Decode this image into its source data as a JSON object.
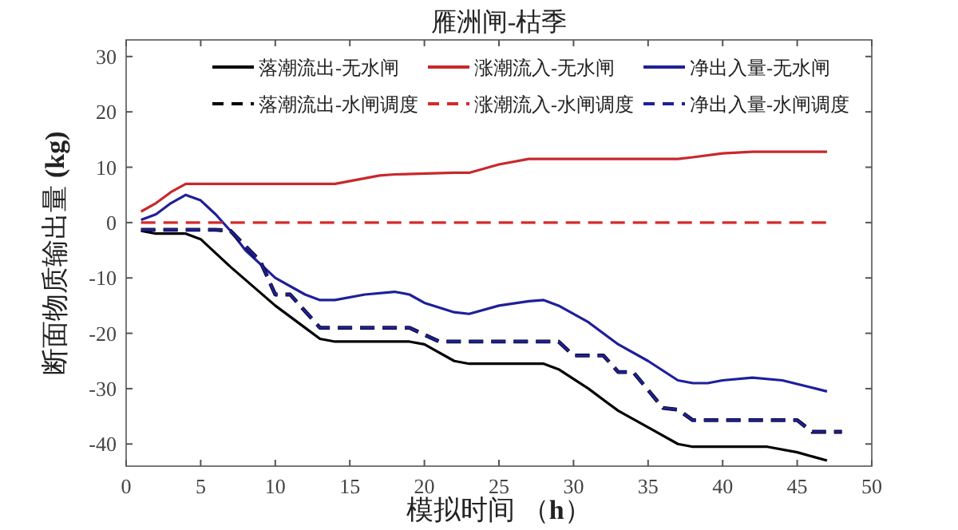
{
  "chart_data": {
    "type": "line",
    "title": "雁洲闸-枯季",
    "xlabel": "模拟时间 （**h**）",
    "ylabel": "断面物质输出量 **(kg)**",
    "xlim": [
      0,
      50
    ],
    "ylim": [
      -44,
      33
    ],
    "xticks": [
      0,
      5,
      10,
      15,
      20,
      25,
      30,
      35,
      40,
      45,
      50
    ],
    "yticks": [
      -40,
      -30,
      -20,
      -10,
      0,
      10,
      20,
      30
    ],
    "grid": false,
    "legend": "top right",
    "marker": "none",
    "series": [
      {
        "name": "落潮流出-无水闸",
        "color": "#000000",
        "line_style": "solid",
        "x": [
          1,
          2,
          4,
          5,
          7,
          10,
          12,
          13,
          14,
          19,
          20,
          22,
          23,
          28,
          29,
          31,
          33,
          35,
          37,
          38,
          43,
          45,
          47
        ],
        "values": [
          -1.5,
          -2,
          -2,
          -3,
          -8,
          -15,
          -19,
          -21,
          -21.5,
          -21.5,
          -22,
          -25,
          -25.5,
          -25.5,
          -26.5,
          -30,
          -34,
          -37,
          -40,
          -40.5,
          -40.5,
          -41.5,
          -43
        ]
      },
      {
        "name": "涨潮流入-无水闸",
        "color": "#c8282d",
        "line_style": "solid",
        "x": [
          1,
          2,
          3,
          4,
          5,
          14,
          15,
          17,
          18,
          22,
          23,
          25,
          27,
          37,
          38,
          40,
          42,
          47
        ],
        "values": [
          2,
          3.5,
          5.5,
          7,
          7,
          7,
          7.5,
          8.5,
          8.7,
          9,
          9,
          10.5,
          11.5,
          11.5,
          11.8,
          12.5,
          12.8,
          12.8
        ]
      },
      {
        "name": "净出入量-无水闸",
        "color": "#1f1f9a",
        "line_style": "solid",
        "x": [
          1,
          2,
          3,
          4,
          5,
          6,
          7,
          8,
          10,
          12,
          13,
          14,
          16,
          18,
          19,
          20,
          22,
          23,
          25,
          27,
          28,
          29,
          31,
          33,
          35,
          37,
          38,
          39,
          40,
          42,
          44,
          47
        ],
        "values": [
          0.5,
          1.5,
          3.5,
          5,
          4,
          1.5,
          -1.5,
          -5,
          -10,
          -13,
          -14,
          -14,
          -13,
          -12.5,
          -13,
          -14.5,
          -16.2,
          -16.5,
          -15,
          -14.2,
          -14,
          -15,
          -18,
          -22,
          -25,
          -28.5,
          -29,
          -29,
          -28.5,
          -28,
          -28.5,
          -30.5
        ]
      },
      {
        "name": "落潮流出-水闸调度",
        "color": "#000000",
        "line_style": "dashed",
        "x": [
          1,
          6,
          7,
          9,
          10,
          11,
          13,
          19,
          21,
          29,
          30,
          32,
          33,
          34,
          36,
          37,
          38,
          45,
          46,
          48
        ],
        "values": [
          -1.3,
          -1.3,
          -1.5,
          -7,
          -13,
          -13,
          -19,
          -19,
          -21.5,
          -21.5,
          -24,
          -24,
          -27,
          -27,
          -33.5,
          -33.8,
          -35.7,
          -35.7,
          -37.8,
          -37.8
        ]
      },
      {
        "name": "涨潮流入-水闸调度",
        "color": "#d42a2a",
        "line_style": "dashed",
        "x": [
          1,
          47
        ],
        "values": [
          0,
          0
        ]
      },
      {
        "name": "净出入量-水闸调度",
        "color": "#1f1f9a",
        "line_style": "dashed",
        "x": [
          1,
          6,
          7,
          9,
          10,
          11,
          13,
          19,
          21,
          29,
          30,
          32,
          33,
          34,
          36,
          37,
          38,
          45,
          46,
          48
        ],
        "values": [
          -1.3,
          -1.3,
          -1.5,
          -7,
          -13,
          -13,
          -19,
          -19,
          -21.5,
          -21.5,
          -24,
          -24,
          -27,
          -27,
          -33.5,
          -33.8,
          -35.7,
          -35.7,
          -37.8,
          -37.8
        ]
      }
    ]
  }
}
